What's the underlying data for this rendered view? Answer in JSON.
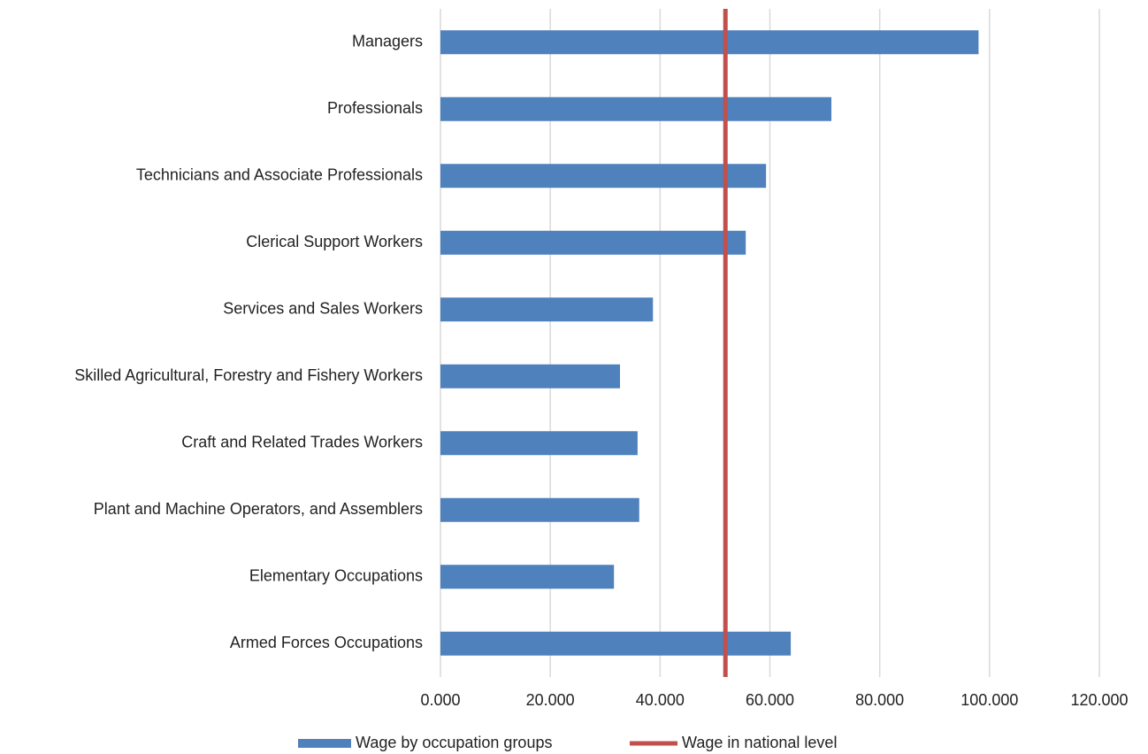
{
  "chart_data": {
    "type": "bar",
    "orientation": "horizontal",
    "categories": [
      "Managers",
      "Professionals",
      "Technicians and Associate Professionals",
      "Clerical Support Workers",
      "Services and Sales Workers",
      "Skilled Agricultural, Forestry and Fishery Workers",
      "Craft and Related Trades Workers",
      "Plant and Machine Operators, and Assemblers",
      "Elementary Occupations",
      "Armed Forces Occupations"
    ],
    "series": [
      {
        "name": "Wage by occupation groups",
        "color": "#4f81bd",
        "values": [
          98.0,
          71.2,
          59.3,
          55.6,
          38.7,
          32.7,
          35.9,
          36.2,
          31.6,
          63.8
        ]
      }
    ],
    "reference_line": {
      "name": "Wage in national level",
      "color": "#c0504d",
      "value": 51.9
    },
    "xlim": [
      0,
      120
    ],
    "xticks": [
      {
        "value": 0,
        "label": "0.000"
      },
      {
        "value": 20,
        "label": "20.000"
      },
      {
        "value": 40,
        "label": "40.000"
      },
      {
        "value": 60,
        "label": "60.000"
      },
      {
        "value": 80,
        "label": "80.000"
      },
      {
        "value": 100,
        "label": "100.000"
      },
      {
        "value": 120,
        "label": "120.000"
      }
    ],
    "grid": true,
    "legend": "bottom"
  }
}
